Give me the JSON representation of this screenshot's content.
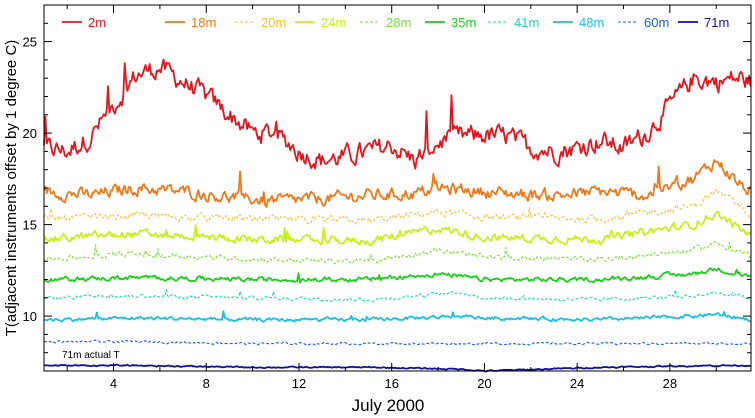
{
  "chart_data": {
    "type": "line",
    "xlabel": "July 2000",
    "ylabel": "T(adjacent instruments offset by 1 degree C)",
    "xlim": [
      1,
      31.5
    ],
    "ylim": [
      7,
      27
    ],
    "xticks": [
      4,
      8,
      12,
      16,
      20,
      24,
      28
    ],
    "yticks": [
      10,
      15,
      20,
      25
    ],
    "annotation": "71m actual T",
    "series": [
      {
        "name": "2m",
        "color": "#e8141c",
        "dash": "solid",
        "x": [
          1,
          2,
          3,
          4,
          5,
          6,
          7,
          8,
          9,
          10,
          11,
          12,
          13,
          14,
          15,
          16,
          17,
          18,
          19,
          20,
          21,
          22,
          23,
          24,
          25,
          26,
          27,
          28,
          29,
          30,
          31,
          31.5
        ],
        "y": [
          19.2,
          19.0,
          19.8,
          21.5,
          23.2,
          23.6,
          22.8,
          22.0,
          21.0,
          20.0,
          20.0,
          19.0,
          18.5,
          18.7,
          19.0,
          19.3,
          18.5,
          19.5,
          19.8,
          19.9,
          19.8,
          19.2,
          19.0,
          19.2,
          19.6,
          19.2,
          20.0,
          21.5,
          23.0,
          22.8,
          23.0,
          22.8
        ]
      },
      {
        "name": "18m",
        "color": "#f07818",
        "dash": "solid",
        "x": [
          1,
          3,
          5,
          7,
          9,
          11,
          13,
          15,
          17,
          18,
          19,
          21,
          23,
          25,
          27,
          29,
          30,
          31,
          31.5
        ],
        "y": [
          16.8,
          16.6,
          17.0,
          16.8,
          16.5,
          16.3,
          16.4,
          16.6,
          16.7,
          17.0,
          16.9,
          16.7,
          16.6,
          16.8,
          16.6,
          17.5,
          18.5,
          17.2,
          16.8
        ]
      },
      {
        "name": "20m",
        "color": "#f8c030",
        "dash": "dash",
        "x": [
          1,
          5,
          10,
          15,
          18,
          20,
          25,
          29,
          30,
          31.5
        ],
        "y": [
          15.3,
          15.5,
          15.3,
          15.2,
          15.7,
          15.4,
          15.3,
          16.0,
          16.8,
          15.6
        ]
      },
      {
        "name": "24m",
        "color": "#c8f018",
        "dash": "solid",
        "x": [
          1,
          5,
          10,
          15,
          18,
          20,
          25,
          29,
          30,
          31.5
        ],
        "y": [
          14.2,
          14.5,
          14.2,
          14.1,
          14.8,
          14.3,
          14.2,
          15.0,
          15.6,
          14.4
        ]
      },
      {
        "name": "28m",
        "color": "#78e030",
        "dash": "dash",
        "x": [
          1,
          5,
          10,
          15,
          18,
          20,
          25,
          29,
          30,
          31.5
        ],
        "y": [
          13.1,
          13.4,
          13.1,
          13.0,
          13.6,
          13.2,
          13.1,
          13.6,
          14.0,
          13.3
        ]
      },
      {
        "name": "35m",
        "color": "#18d018",
        "dash": "solid",
        "x": [
          1,
          5,
          10,
          15,
          18,
          20,
          25,
          29,
          30,
          31.5
        ],
        "y": [
          12.0,
          12.1,
          12.0,
          12.0,
          12.3,
          12.0,
          12.0,
          12.3,
          12.6,
          12.1
        ]
      },
      {
        "name": "41m",
        "color": "#20d8b0",
        "dash": "dash",
        "x": [
          1,
          5,
          10,
          15,
          19,
          20,
          25,
          29,
          30,
          31.5
        ],
        "y": [
          11.0,
          11.1,
          11.0,
          10.9,
          11.3,
          11.0,
          10.9,
          11.1,
          11.3,
          11.0
        ]
      },
      {
        "name": "48m",
        "color": "#18c0e8",
        "dash": "solid",
        "x": [
          1,
          5,
          10,
          15,
          19,
          20,
          25,
          29,
          30,
          31.5
        ],
        "y": [
          9.8,
          9.9,
          9.8,
          9.8,
          10.0,
          9.9,
          9.8,
          10.0,
          10.1,
          9.8
        ]
      },
      {
        "name": "60m",
        "color": "#1860d8",
        "dash": "dash",
        "x": [
          1,
          5,
          10,
          15,
          20,
          25,
          30,
          31.5
        ],
        "y": [
          8.6,
          8.6,
          8.5,
          8.5,
          8.5,
          8.5,
          8.5,
          8.5
        ]
      },
      {
        "name": "71m",
        "color": "#1010a8",
        "dash": "solid",
        "x": [
          1,
          5,
          10,
          15,
          19,
          20,
          25,
          30,
          31.5
        ],
        "y": [
          7.3,
          7.3,
          7.2,
          7.2,
          7.1,
          7.0,
          7.2,
          7.3,
          7.3
        ]
      }
    ]
  }
}
